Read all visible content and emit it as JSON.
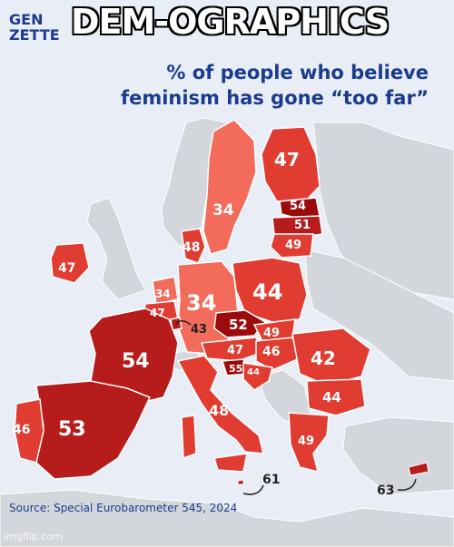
{
  "meme_caption": "DEM-OGRAPHICS",
  "logo": {
    "line1": "GEN",
    "line2": "ZETTE"
  },
  "subtitle_line1": "% of people who believe",
  "subtitle_line2": "feminism has gone “too far”",
  "source": "Source: Special Eurobarometer 545, 2024",
  "watermark": "imgflip.com",
  "colors": {
    "background": "#e9edf5",
    "nodata": "#d3d6da",
    "light": "#f26b5b",
    "mid": "#e03c31",
    "dark": "#b61c1c",
    "darker": "#9b0b0b",
    "title": "#1a3c8f"
  },
  "values": {
    "finland": "47",
    "sweden": "34",
    "estonia": "54",
    "latvia": "51",
    "lithuania": "49",
    "denmark": "48",
    "ireland": "47",
    "netherlands": "34",
    "belgium": "47",
    "germany": "34",
    "luxembourg": "43",
    "poland": "44",
    "czechia": "52",
    "slovakia": "49",
    "austria": "47",
    "hungary": "46",
    "slovenia": "55",
    "croatia": "44",
    "romania": "42",
    "bulgaria": "44",
    "france": "54",
    "italy": "48",
    "spain": "53",
    "portugal": "46",
    "greece": "49",
    "malta": "61",
    "cyprus": "63"
  }
}
